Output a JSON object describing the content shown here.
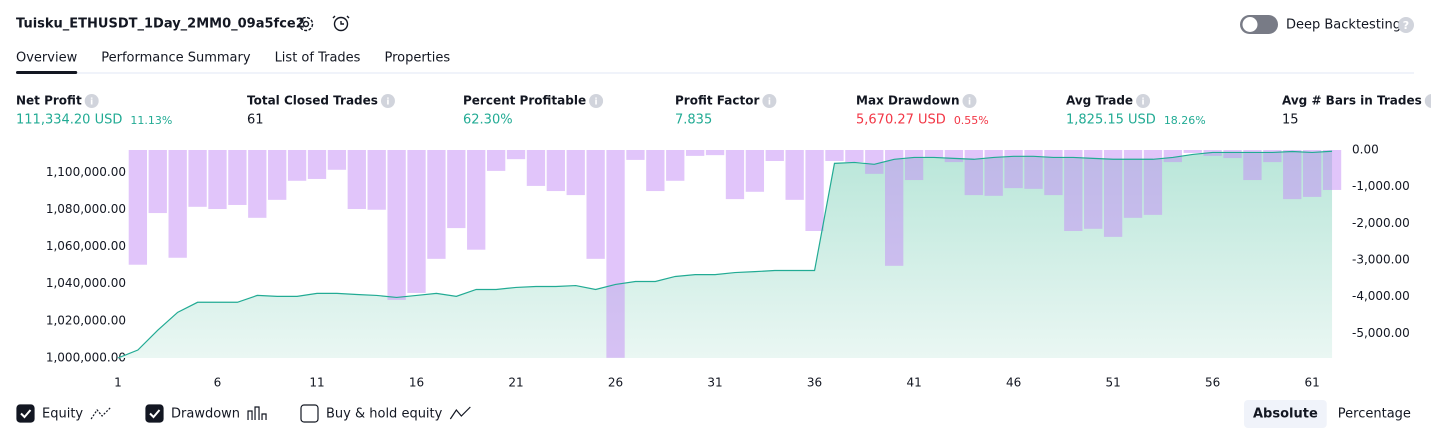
{
  "header": {
    "title": "Tuisku_ETHUSDT_1Day_2MM0_09a5fce2",
    "toggle_label": "Deep Backtesting",
    "toggle_on": false
  },
  "tabs": [
    {
      "label": "Overview",
      "active": true
    },
    {
      "label": "Performance Summary",
      "active": false
    },
    {
      "label": "List of Trades",
      "active": false
    },
    {
      "label": "Properties",
      "active": false
    }
  ],
  "metrics": [
    {
      "label": "Net Profit",
      "value": "111,334.20 USD",
      "percent": "11.13%",
      "color": "#22ab94"
    },
    {
      "label": "Total Closed Trades",
      "value": "61",
      "color": "#131722"
    },
    {
      "label": "Percent Profitable",
      "value": "62.30%",
      "color": "#22ab94"
    },
    {
      "label": "Profit Factor",
      "value": "7.835",
      "color": "#22ab94"
    },
    {
      "label": "Max Drawdown",
      "value": "5,670.27 USD",
      "percent": "0.55%",
      "color": "#f23645"
    },
    {
      "label": "Avg Trade",
      "value": "1,825.15 USD",
      "percent": "18.26%",
      "color": "#22ab94"
    },
    {
      "label": "Avg # Bars in Trades",
      "value": "15",
      "color": "#131722"
    }
  ],
  "chart_data": {
    "type": "combo",
    "x": [
      1,
      2,
      3,
      4,
      5,
      6,
      7,
      8,
      9,
      10,
      11,
      12,
      13,
      14,
      15,
      16,
      17,
      18,
      19,
      20,
      21,
      22,
      23,
      24,
      25,
      26,
      27,
      28,
      29,
      30,
      31,
      32,
      33,
      34,
      35,
      36,
      37,
      38,
      39,
      40,
      41,
      42,
      43,
      44,
      45,
      46,
      47,
      48,
      49,
      50,
      51,
      52,
      53,
      54,
      55,
      56,
      57,
      58,
      59,
      60,
      61,
      62
    ],
    "xlim": [
      0.6,
      62.5
    ],
    "xticks": [
      1,
      6,
      11,
      16,
      21,
      26,
      31,
      36,
      41,
      46,
      51,
      56,
      61
    ],
    "ylim": [
      1000000,
      1112000
    ],
    "yticks": [
      {
        "value": 1000000,
        "label": "1,000,000.00"
      },
      {
        "value": 1020000,
        "label": "1,020,000.00"
      },
      {
        "value": 1040000,
        "label": "1,040,000.00"
      },
      {
        "value": 1060000,
        "label": "1,060,000.00"
      },
      {
        "value": 1080000,
        "label": "1,080,000.00"
      },
      {
        "value": 1100000,
        "label": "1,100,000.00"
      }
    ],
    "y2lim": [
      -5675,
      0
    ],
    "y2ticks": [
      {
        "value": 0,
        "label": "0.00"
      },
      {
        "value": -1000,
        "label": "-1,000.00"
      },
      {
        "value": -2000,
        "label": "-2,000.00"
      },
      {
        "value": -3000,
        "label": "-3,000.00"
      },
      {
        "value": -4000,
        "label": "-4,000.00"
      },
      {
        "value": -5000,
        "label": "-5,000.00"
      }
    ],
    "series": [
      {
        "name": "Equity",
        "type": "area",
        "color": "#22ab94",
        "checked": true,
        "values": [
          1000000,
          1004300,
          1015000,
          1024600,
          1030000,
          1030000,
          1030000,
          1033700,
          1033200,
          1033200,
          1034800,
          1034800,
          1034200,
          1033700,
          1032600,
          1033700,
          1034800,
          1033200,
          1036900,
          1036900,
          1038000,
          1038500,
          1038500,
          1039000,
          1036900,
          1039600,
          1041200,
          1041200,
          1043900,
          1044900,
          1044900,
          1046000,
          1046500,
          1047100,
          1047100,
          1047100,
          1104800,
          1105300,
          1104300,
          1107000,
          1108000,
          1108000,
          1107500,
          1107000,
          1108000,
          1108600,
          1108600,
          1108000,
          1108000,
          1107500,
          1107000,
          1107000,
          1107000,
          1108000,
          1109600,
          1110700,
          1110700,
          1110700,
          1110700,
          1111200,
          1110700,
          1111334
        ]
      },
      {
        "name": "Drawdown",
        "type": "bar",
        "axis": "y2",
        "color": "#c48cf5",
        "checked": true,
        "values": [
          null,
          -3130,
          -1720,
          -2940,
          -1550,
          -1610,
          -1500,
          -1850,
          -1360,
          -840,
          -790,
          -540,
          -1610,
          -1630,
          -4090,
          -3900,
          -2970,
          -2130,
          -2720,
          -570,
          -250,
          -980,
          -1120,
          -1230,
          -2970,
          -5670,
          -270,
          -1120,
          -840,
          -160,
          -140,
          -1340,
          -1140,
          -300,
          -1360,
          -2210,
          -300,
          -330,
          -650,
          -3160,
          -820,
          -220,
          -330,
          -1230,
          -1250,
          -1040,
          -1060,
          -1230,
          -2210,
          -2150,
          -2370,
          -1850,
          -1770,
          -330,
          -80,
          -160,
          -220,
          -820,
          -330,
          -1340,
          -1280,
          -1090
        ]
      }
    ],
    "extra_legend": {
      "name": "Buy & hold equity",
      "checked": false
    }
  },
  "view_buttons": [
    {
      "label": "Absolute",
      "active": true
    },
    {
      "label": "Percentage",
      "active": false
    }
  ]
}
